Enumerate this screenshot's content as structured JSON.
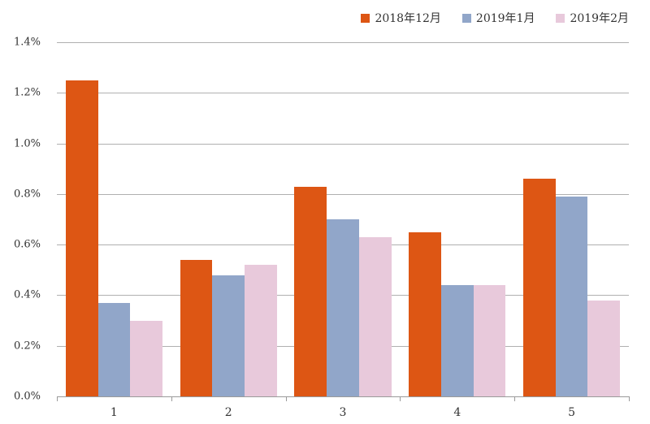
{
  "chart_data": {
    "type": "bar",
    "title": "",
    "xlabel": "",
    "ylabel": "",
    "categories": [
      "1",
      "2",
      "3",
      "4",
      "5"
    ],
    "series": [
      {
        "name": "2018年12月",
        "color": "#dd5614",
        "values": [
          1.25,
          0.54,
          0.83,
          0.65,
          0.86
        ]
      },
      {
        "name": "2019年1月",
        "color": "#91a6c9",
        "values": [
          0.37,
          0.48,
          0.7,
          0.44,
          0.79
        ]
      },
      {
        "name": "2019年2月",
        "color": "#e8c9db",
        "values": [
          0.3,
          0.52,
          0.63,
          0.44,
          0.38
        ]
      }
    ],
    "ylim": [
      0,
      1.4
    ],
    "yticks": [
      "0.0%",
      "0.2%",
      "0.4%",
      "0.6%",
      "0.8%",
      "1.0%",
      "1.2%",
      "1.4%"
    ],
    "grid": true,
    "legend_position": "top-right",
    "value_unit": "%"
  }
}
